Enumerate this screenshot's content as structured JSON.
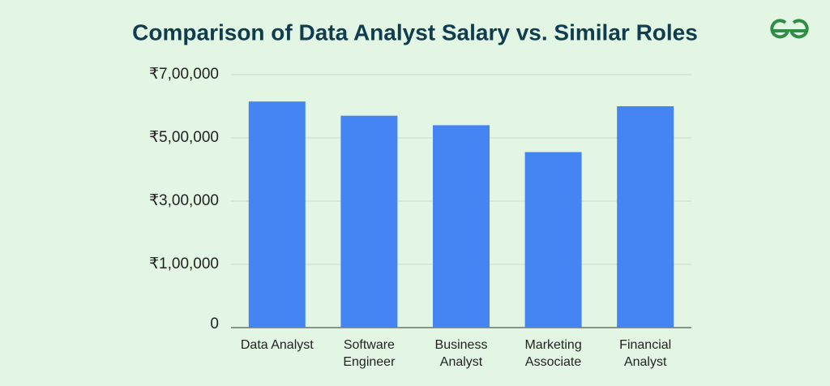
{
  "chart_data": {
    "type": "bar",
    "title": "Comparison of Data Analyst Salary vs. Similar Roles",
    "categories": [
      "Data Analyst",
      "Software Engineer",
      "Business Analyst",
      "Marketing Associate",
      "Financial Analyst"
    ],
    "values": [
      615000,
      570000,
      540000,
      455000,
      600000
    ],
    "color": "#4585f3",
    "ylim": [
      -100000,
      700000
    ],
    "yticks": [
      {
        "value": 100000,
        "label": "₹1,00,000"
      },
      {
        "value": 300000,
        "label": "₹3,00,000"
      },
      {
        "value": 500000,
        "label": "₹5,00,000"
      },
      {
        "value": 700000,
        "label": "₹7,00,000"
      }
    ],
    "baseline_label": "0",
    "grid": true
  }
}
